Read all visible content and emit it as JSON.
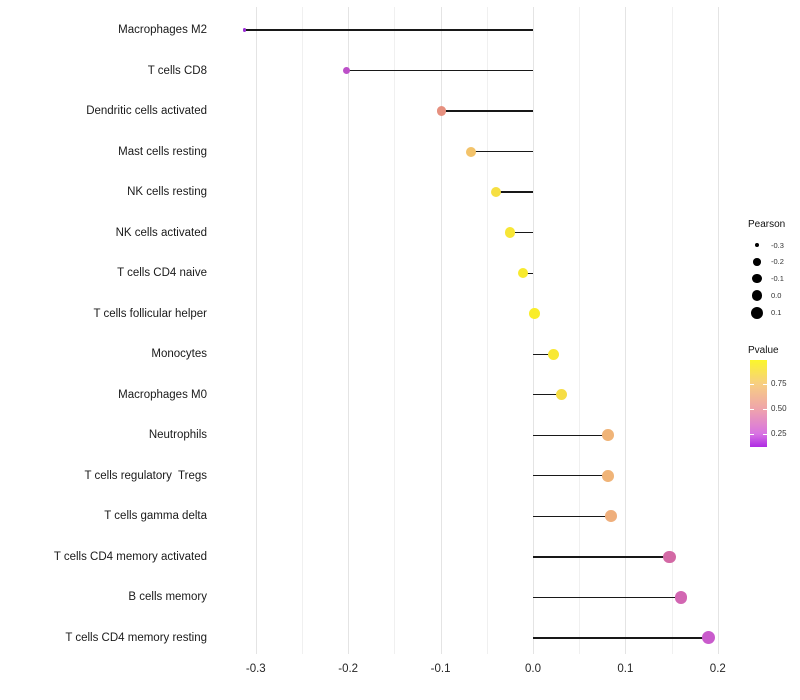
{
  "chart_data": {
    "type": "scatter",
    "variant": "lollipop",
    "title": "",
    "xlabel": "",
    "ylabel": "",
    "xlim": [
      -0.35,
      0.22
    ],
    "grid": "vertical-only",
    "stick_color": "#181818",
    "categories": [
      "Macrophages M2",
      "T cells CD8",
      "Dendritic cells activated",
      "Mast cells resting",
      "NK cells resting",
      "NK cells activated",
      "T cells CD4 naive",
      "T cells follicular helper",
      "Monocytes",
      "Macrophages M0",
      "Neutrophils",
      "T cells regulatory  Tregs",
      "T cells gamma delta",
      "T cells CD4 memory activated",
      "B cells memory",
      "T cells CD4 memory resting"
    ],
    "items": [
      {
        "label": "Macrophages M2",
        "pearson": -0.312,
        "pvalue": 0.1,
        "color": "#9b2fd6"
      },
      {
        "label": "T cells CD8",
        "pearson": -0.202,
        "pvalue": 0.2,
        "color": "#bc4fc8"
      },
      {
        "label": "Dendritic cells activated",
        "pearson": -0.099,
        "pvalue": 0.55,
        "color": "#e6907f"
      },
      {
        "label": "Mast cells resting",
        "pearson": -0.067,
        "pvalue": 0.72,
        "color": "#f3c36a"
      },
      {
        "label": "NK cells resting",
        "pearson": -0.04,
        "pvalue": 0.85,
        "color": "#f6df42"
      },
      {
        "label": "NK cells activated",
        "pearson": -0.025,
        "pvalue": 0.88,
        "color": "#f7e636"
      },
      {
        "label": "T cells CD4 naive",
        "pearson": -0.011,
        "pvalue": 0.9,
        "color": "#f8ea2e"
      },
      {
        "label": "T cells follicular helper",
        "pearson": 0.002,
        "pvalue": 0.92,
        "color": "#f9ed29"
      },
      {
        "label": "Monocytes",
        "pearson": 0.022,
        "pvalue": 0.89,
        "color": "#f8e833"
      },
      {
        "label": "Macrophages M0",
        "pearson": 0.031,
        "pvalue": 0.84,
        "color": "#f6dd45"
      },
      {
        "label": "Neutrophils",
        "pearson": 0.081,
        "pvalue": 0.65,
        "color": "#f0b478"
      },
      {
        "label": "T cells regulatory  Tregs",
        "pearson": 0.081,
        "pvalue": 0.65,
        "color": "#f0b478"
      },
      {
        "label": "T cells gamma delta",
        "pearson": 0.084,
        "pvalue": 0.64,
        "color": "#efaf7c"
      },
      {
        "label": "T cells CD4 memory activated",
        "pearson": 0.148,
        "pvalue": 0.35,
        "color": "#d369a5"
      },
      {
        "label": "B cells memory",
        "pearson": 0.16,
        "pvalue": 0.33,
        "color": "#d266b2"
      },
      {
        "label": "T cells CD4 memory resting",
        "pearson": 0.19,
        "pvalue": 0.27,
        "color": "#c95bcc"
      }
    ],
    "x_axis": {
      "major_ticks": [
        {
          "value": -0.3,
          "label": "-0.3"
        },
        {
          "value": -0.2,
          "label": "-0.2"
        },
        {
          "value": -0.1,
          "label": "-0.1"
        },
        {
          "value": 0.0,
          "label": "0.0"
        },
        {
          "value": 0.1,
          "label": "0.1"
        },
        {
          "value": 0.2,
          "label": "0.2"
        }
      ],
      "minor_ticks": [
        -0.25,
        -0.15,
        -0.05,
        0.05,
        0.15
      ]
    },
    "legend": {
      "position": "right",
      "size_legend": {
        "title": "Pearson",
        "entries": [
          {
            "value": -0.3,
            "label": "-0.3"
          },
          {
            "value": -0.2,
            "label": "-0.2"
          },
          {
            "value": -0.1,
            "label": "-0.1"
          },
          {
            "value": 0.0,
            "label": "0.0"
          },
          {
            "value": 0.1,
            "label": "0.1"
          }
        ],
        "dot_color": "#000000"
      },
      "color_legend": {
        "title": "Pvalue",
        "tick_labels": [
          "0.75",
          "0.50",
          "0.25"
        ],
        "tick_values": [
          0.75,
          0.5,
          0.25
        ],
        "range": [
          1.0,
          0.12
        ],
        "gradient_stops": [
          {
            "pos": 0.0,
            "color": "#fbf62b"
          },
          {
            "pos": 0.276,
            "color": "#f7ce82"
          },
          {
            "pos": 0.563,
            "color": "#efa4ab"
          },
          {
            "pos": 0.85,
            "color": "#d873e3"
          },
          {
            "pos": 1.0,
            "color": "#ae2be3"
          }
        ]
      }
    }
  }
}
